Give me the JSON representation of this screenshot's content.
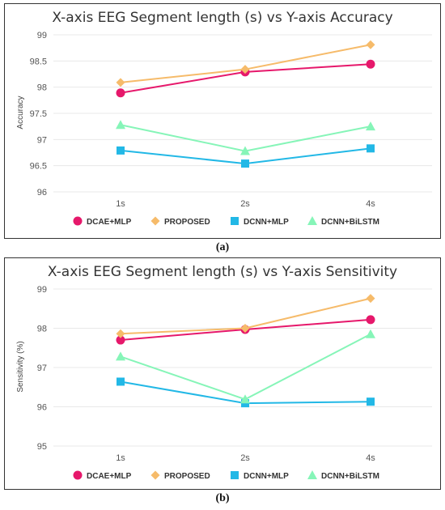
{
  "colors": {
    "DCAE+MLP": "#e6186b",
    "PROPOSED": "#f6bb6a",
    "DCNN+MLP": "#22b8e6",
    "DCNN+BiLSTM": "#86f5b8"
  },
  "markers": {
    "DCAE+MLP": "circle",
    "PROPOSED": "diamond",
    "DCNN+MLP": "square",
    "DCNN+BiLSTM": "triangle"
  },
  "captions": [
    "(a)",
    "(b)"
  ],
  "chart_data": [
    {
      "type": "line",
      "title": "X-axis EEG Segment length (s) vs Y-axis Accuracy",
      "xlabel": "",
      "ylabel": "Accuracy",
      "categories": [
        "1s",
        "2s",
        "4s"
      ],
      "ylim": [
        96,
        99
      ],
      "yticks": [
        96,
        96.5,
        97,
        97.5,
        98,
        98.5,
        99
      ],
      "ytick_labels": [
        "96",
        "96.5",
        "97",
        "97.5",
        "98",
        "98.5",
        "99"
      ],
      "grid": "horizontal",
      "legend": "bottom",
      "series": [
        {
          "name": "DCAE+MLP",
          "values": [
            97.89,
            98.29,
            98.44
          ]
        },
        {
          "name": "PROPOSED",
          "values": [
            98.09,
            98.34,
            98.81
          ]
        },
        {
          "name": "DCNN+MLP",
          "values": [
            96.79,
            96.54,
            96.83
          ]
        },
        {
          "name": "DCNN+BiLSTM",
          "values": [
            97.28,
            96.78,
            97.25
          ]
        }
      ]
    },
    {
      "type": "line",
      "title": "X-axis EEG Segment length (s) vs Y-axis Sensitivity",
      "xlabel": "",
      "ylabel": "Sensitivity (%)",
      "categories": [
        "1s",
        "2s",
        "4s"
      ],
      "ylim": [
        95,
        99
      ],
      "yticks": [
        95,
        96,
        97,
        98,
        99
      ],
      "ytick_labels": [
        "95",
        "96",
        "97",
        "98",
        "99"
      ],
      "grid": "horizontal",
      "legend": "bottom",
      "series": [
        {
          "name": "DCAE+MLP",
          "values": [
            97.7,
            97.97,
            98.22
          ]
        },
        {
          "name": "PROPOSED",
          "values": [
            97.86,
            98.0,
            98.76
          ]
        },
        {
          "name": "DCNN+MLP",
          "values": [
            96.64,
            96.09,
            96.13
          ]
        },
        {
          "name": "DCNN+BiLSTM",
          "values": [
            97.28,
            96.19,
            97.85
          ]
        }
      ]
    }
  ]
}
